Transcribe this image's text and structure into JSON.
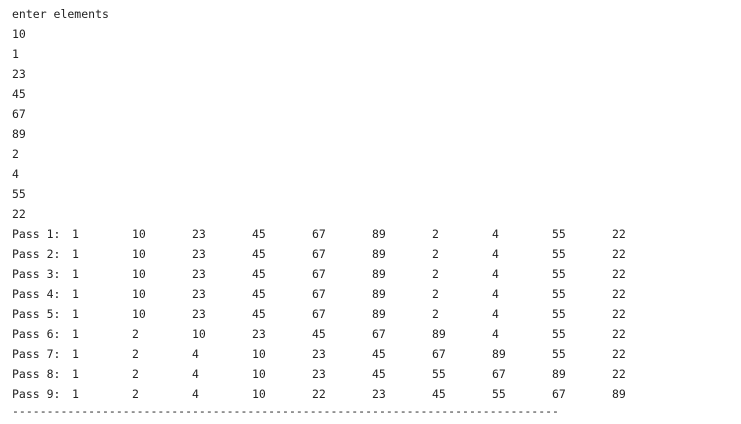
{
  "console": {
    "prompt": "enter elements",
    "inputs": [
      "10",
      "1",
      "23",
      "45",
      "67",
      "89",
      "2",
      "4",
      "55",
      "22"
    ],
    "passes": [
      {
        "label": "Pass 1:",
        "values": [
          "1",
          "10",
          "23",
          "45",
          "67",
          "89",
          "2",
          "4",
          "55",
          "22"
        ]
      },
      {
        "label": "Pass 2:",
        "values": [
          "1",
          "10",
          "23",
          "45",
          "67",
          "89",
          "2",
          "4",
          "55",
          "22"
        ]
      },
      {
        "label": "Pass 3:",
        "values": [
          "1",
          "10",
          "23",
          "45",
          "67",
          "89",
          "2",
          "4",
          "55",
          "22"
        ]
      },
      {
        "label": "Pass 4:",
        "values": [
          "1",
          "10",
          "23",
          "45",
          "67",
          "89",
          "2",
          "4",
          "55",
          "22"
        ]
      },
      {
        "label": "Pass 5:",
        "values": [
          "1",
          "10",
          "23",
          "45",
          "67",
          "89",
          "2",
          "4",
          "55",
          "22"
        ]
      },
      {
        "label": "Pass 6:",
        "values": [
          "1",
          "2",
          "10",
          "23",
          "45",
          "67",
          "89",
          "4",
          "55",
          "22"
        ]
      },
      {
        "label": "Pass 7:",
        "values": [
          "1",
          "2",
          "4",
          "10",
          "23",
          "45",
          "67",
          "89",
          "55",
          "22"
        ]
      },
      {
        "label": "Pass 8:",
        "values": [
          "1",
          "2",
          "4",
          "10",
          "23",
          "45",
          "55",
          "67",
          "89",
          "22"
        ]
      },
      {
        "label": "Pass 9:",
        "values": [
          "1",
          "2",
          "4",
          "10",
          "22",
          "23",
          "45",
          "55",
          "67",
          "89"
        ]
      }
    ],
    "separator": "-------------------------------------------------------------------------------"
  }
}
